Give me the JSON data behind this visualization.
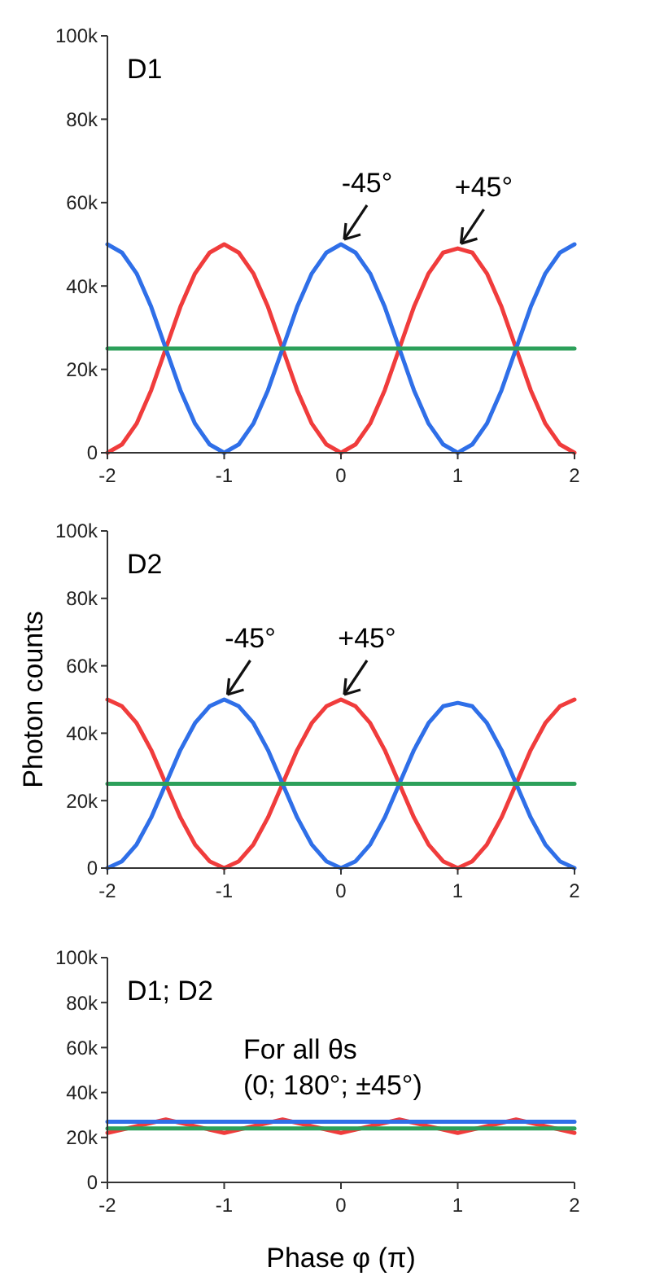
{
  "chart_data": [
    {
      "type": "line",
      "x": [
        -2,
        -1.875,
        -1.75,
        -1.625,
        -1.5,
        -1.375,
        -1.25,
        -1.125,
        -1,
        -0.875,
        -0.75,
        -0.625,
        -0.5,
        -0.375,
        -0.25,
        -0.125,
        0,
        0.125,
        0.25,
        0.375,
        0.5,
        0.625,
        0.75,
        0.875,
        1,
        1.125,
        1.25,
        1.375,
        1.5,
        1.625,
        1.75,
        1.875,
        2
      ],
      "series": [
        {
          "color": "#f03c3c",
          "values": [
            0,
            2000,
            7000,
            15000,
            25000,
            35000,
            43000,
            48000,
            50000,
            48000,
            43000,
            35000,
            25000,
            15000,
            7000,
            2000,
            0,
            2000,
            7000,
            15000,
            25000,
            35000,
            43000,
            48000,
            49000,
            48000,
            43000,
            35000,
            25000,
            15000,
            7000,
            2000,
            0
          ]
        },
        {
          "color": "#2f6fe8",
          "values": [
            50000,
            48000,
            43000,
            35000,
            25000,
            15000,
            7000,
            2000,
            0,
            2000,
            7000,
            15000,
            25000,
            35000,
            43000,
            48000,
            50000,
            48000,
            43000,
            35000,
            25000,
            15000,
            7000,
            2000,
            0,
            2000,
            7000,
            15000,
            25000,
            35000,
            43000,
            48000,
            50000
          ]
        },
        {
          "color": "#2ca05a",
          "values": [
            25000,
            25000,
            25000,
            25000,
            25000,
            25000,
            25000,
            25000,
            25000,
            25000,
            25000,
            25000,
            25000,
            25000,
            25000,
            25000,
            25000,
            25000,
            25000,
            25000,
            25000,
            25000,
            25000,
            25000,
            25000,
            25000,
            25000,
            25000,
            25000,
            25000,
            25000,
            25000,
            25000
          ]
        }
      ],
      "xlim": [
        -2,
        2
      ],
      "xticks": [
        -2,
        -1,
        0,
        1,
        2
      ],
      "ylim": [
        0,
        100000
      ],
      "yticks": [
        {
          "value": 0,
          "label": "0"
        },
        {
          "value": 20000,
          "label": "20k"
        },
        {
          "value": 40000,
          "label": "40k"
        },
        {
          "value": 60000,
          "label": "60k"
        },
        {
          "value": 80000,
          "label": "80k"
        },
        {
          "value": 100000,
          "label": "100k"
        }
      ],
      "line_style": "solid",
      "marker": "none",
      "grid": false,
      "annotations": [
        "D1",
        {
          "text": "-45°",
          "x": 0,
          "y": 50000
        },
        {
          "text": "+45°",
          "x": 1,
          "y": 49000
        }
      ]
    },
    {
      "type": "line",
      "x": [
        -2,
        -1.875,
        -1.75,
        -1.625,
        -1.5,
        -1.375,
        -1.25,
        -1.125,
        -1,
        -0.875,
        -0.75,
        -0.625,
        -0.5,
        -0.375,
        -0.25,
        -0.125,
        0,
        0.125,
        0.25,
        0.375,
        0.5,
        0.625,
        0.75,
        0.875,
        1,
        1.125,
        1.25,
        1.375,
        1.5,
        1.625,
        1.75,
        1.875,
        2
      ],
      "series": [
        {
          "color": "#f03c3c",
          "values": [
            50000,
            48000,
            43000,
            35000,
            25000,
            15000,
            7000,
            2000,
            0,
            2000,
            7000,
            15000,
            25000,
            35000,
            43000,
            48000,
            50000,
            48000,
            43000,
            35000,
            25000,
            15000,
            7000,
            2000,
            0,
            2000,
            7000,
            15000,
            25000,
            35000,
            43000,
            48000,
            50000
          ]
        },
        {
          "color": "#2f6fe8",
          "values": [
            0,
            2000,
            7000,
            15000,
            25000,
            35000,
            43000,
            48000,
            50000,
            48000,
            43000,
            35000,
            25000,
            15000,
            7000,
            2000,
            0,
            2000,
            7000,
            15000,
            25000,
            35000,
            43000,
            48000,
            49000,
            48000,
            43000,
            35000,
            25000,
            15000,
            7000,
            2000,
            0
          ]
        },
        {
          "color": "#2ca05a",
          "values": [
            25000,
            25000,
            25000,
            25000,
            25000,
            25000,
            25000,
            25000,
            25000,
            25000,
            25000,
            25000,
            25000,
            25000,
            25000,
            25000,
            25000,
            25000,
            25000,
            25000,
            25000,
            25000,
            25000,
            25000,
            25000,
            25000,
            25000,
            25000,
            25000,
            25000,
            25000,
            25000,
            25000
          ]
        }
      ],
      "xlim": [
        -2,
        2
      ],
      "xticks": [
        -2,
        -1,
        0,
        1,
        2
      ],
      "ylim": [
        0,
        100000
      ],
      "yticks": [
        {
          "value": 0,
          "label": "0"
        },
        {
          "value": 20000,
          "label": "20k"
        },
        {
          "value": 40000,
          "label": "40k"
        },
        {
          "value": 60000,
          "label": "60k"
        },
        {
          "value": 80000,
          "label": "80k"
        },
        {
          "value": 100000,
          "label": "100k"
        }
      ],
      "ylabel": "Photon counts",
      "line_style": "solid",
      "marker": "none",
      "grid": false,
      "annotations": [
        "D2",
        {
          "text": "-45°",
          "x": -1,
          "y": 50000
        },
        {
          "text": "+45°",
          "x": 0,
          "y": 50000
        }
      ]
    },
    {
      "type": "line",
      "x": [
        -2,
        -1.5,
        -1,
        -0.5,
        0,
        0.5,
        1,
        1.5,
        2
      ],
      "series": [
        {
          "color": "#f03c3c",
          "values": [
            22000,
            28000,
            22000,
            28000,
            22000,
            28000,
            22000,
            28000,
            22000
          ]
        },
        {
          "color": "#2f6fe8",
          "values": [
            27000,
            27000,
            27000,
            27000,
            27000,
            27000,
            27000,
            27000,
            27000
          ]
        },
        {
          "color": "#2ca05a",
          "values": [
            24000,
            24000,
            24000,
            24000,
            24000,
            24000,
            24000,
            24000,
            24000
          ]
        }
      ],
      "xlim": [
        -2,
        2
      ],
      "xticks": [
        -2,
        -1,
        0,
        1,
        2
      ],
      "ylim": [
        0,
        100000
      ],
      "yticks": [
        {
          "value": 0,
          "label": "0"
        },
        {
          "value": 20000,
          "label": "20k"
        },
        {
          "value": 40000,
          "label": "40k"
        },
        {
          "value": 60000,
          "label": "60k"
        },
        {
          "value": 80000,
          "label": "80k"
        },
        {
          "value": 100000,
          "label": "100k"
        }
      ],
      "xlabel": "Phase φ (π)",
      "line_style": "solid",
      "marker": "none",
      "grid": false,
      "annotations": [
        "D1; D2",
        "For all θs",
        "(0; 180°; ±45°)"
      ]
    }
  ]
}
